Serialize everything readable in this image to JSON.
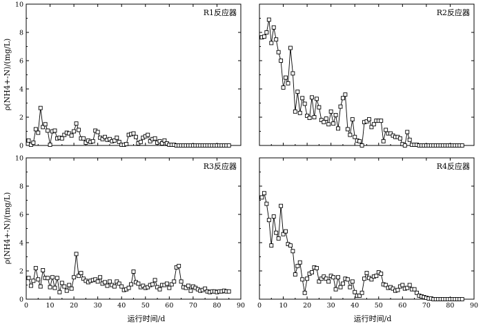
{
  "chart_data": [
    {
      "type": "line",
      "label": "R1反应器",
      "xlim": [
        0,
        90
      ],
      "ylim": [
        0,
        10
      ],
      "x_ticks": [
        0,
        10,
        20,
        30,
        40,
        50,
        60,
        70,
        80,
        90
      ],
      "y_ticks": [
        0,
        2,
        4,
        6,
        8,
        10
      ],
      "x": [
        1,
        2,
        3,
        4,
        5,
        6,
        7,
        8,
        9,
        10,
        11,
        12,
        13,
        14,
        15,
        16,
        17,
        18,
        19,
        20,
        21,
        22,
        23,
        24,
        25,
        26,
        27,
        28,
        29,
        30,
        31,
        32,
        33,
        34,
        35,
        36,
        37,
        38,
        39,
        40,
        41,
        42,
        43,
        44,
        45,
        46,
        47,
        48,
        49,
        50,
        51,
        52,
        53,
        54,
        55,
        56,
        57,
        58,
        59,
        60,
        61,
        62,
        63,
        64,
        65,
        66,
        67,
        68,
        69,
        70,
        71,
        72,
        73,
        74,
        75,
        76,
        77,
        78,
        79,
        80,
        81,
        82,
        83,
        84,
        85
      ],
      "values": [
        0.35,
        0.05,
        0.2,
        1.15,
        0.9,
        2.65,
        1.3,
        1.5,
        1.05,
        0.05,
        1.0,
        1.05,
        0.5,
        0.55,
        0.5,
        0.75,
        0.9,
        0.85,
        0.7,
        1.0,
        1.55,
        1.1,
        0.5,
        0.5,
        0.2,
        0.35,
        0.25,
        0.3,
        1.05,
        0.95,
        0.55,
        0.45,
        0.6,
        0.4,
        0.45,
        0.3,
        0.35,
        0.55,
        0.25,
        0.05,
        0.05,
        0.1,
        0.75,
        0.8,
        0.85,
        0.6,
        0.15,
        0.25,
        0.55,
        0.65,
        0.75,
        0.3,
        0.45,
        0.5,
        0.2,
        0.3,
        0.15,
        0.35,
        0.15,
        0.05,
        0.05,
        0.05,
        0.0,
        0.0,
        0.0,
        0.0,
        0.0,
        0.0,
        0.0,
        0.0,
        0.0,
        0.0,
        0.0,
        0.0,
        0.0,
        0.0,
        0.0,
        0.0,
        0.0,
        0.0,
        0.0,
        0.0,
        0.0,
        0.0,
        0.0
      ]
    },
    {
      "type": "line",
      "label": "R2反应器",
      "xlim": [
        0,
        90
      ],
      "ylim": [
        0,
        10
      ],
      "x_ticks": [
        0,
        10,
        20,
        30,
        40,
        50,
        60,
        70,
        80,
        90
      ],
      "y_ticks": [
        0,
        2,
        4,
        6,
        8,
        10
      ],
      "x": [
        1,
        2,
        3,
        4,
        5,
        6,
        7,
        8,
        9,
        10,
        11,
        12,
        13,
        14,
        15,
        16,
        17,
        18,
        19,
        20,
        21,
        22,
        23,
        24,
        25,
        26,
        27,
        28,
        29,
        30,
        31,
        32,
        33,
        34,
        35,
        36,
        37,
        38,
        39,
        40,
        41,
        42,
        43,
        44,
        45,
        46,
        47,
        48,
        49,
        50,
        51,
        52,
        53,
        54,
        55,
        56,
        57,
        58,
        59,
        60,
        61,
        62,
        63,
        64,
        65,
        66,
        67,
        68,
        69,
        70,
        71,
        72,
        73,
        74,
        75,
        76,
        77,
        78,
        79,
        80,
        81,
        82,
        83,
        84,
        85
      ],
      "values": [
        7.65,
        7.7,
        8.0,
        8.9,
        7.25,
        8.35,
        7.5,
        6.6,
        6.0,
        4.1,
        4.8,
        4.4,
        6.9,
        5.1,
        2.4,
        3.8,
        2.3,
        3.35,
        2.95,
        2.1,
        1.95,
        3.4,
        2.0,
        3.3,
        2.7,
        1.8,
        1.65,
        1.9,
        1.5,
        2.4,
        1.55,
        2.15,
        1.2,
        2.75,
        3.35,
        3.6,
        1.15,
        0.75,
        1.85,
        0.6,
        0.35,
        0.3,
        0.0,
        1.65,
        1.7,
        1.85,
        1.3,
        1.5,
        1.75,
        1.75,
        1.75,
        0.3,
        1.1,
        0.85,
        0.85,
        0.7,
        0.6,
        0.6,
        0.5,
        0.1,
        0.0,
        0.95,
        0.4,
        0.05,
        0.05,
        0.05,
        0.0,
        0.0,
        0.0,
        0.0,
        0.0,
        0.0,
        0.0,
        0.0,
        0.0,
        0.0,
        0.0,
        0.0,
        0.0,
        0.0,
        0.0,
        0.0,
        0.0,
        0.0,
        0.0
      ]
    },
    {
      "type": "line",
      "label": "R3反应器",
      "xlim": [
        0,
        90
      ],
      "ylim": [
        0,
        10
      ],
      "x_ticks": [
        0,
        10,
        20,
        30,
        40,
        50,
        60,
        70,
        80,
        90
      ],
      "y_ticks": [
        0,
        2,
        4,
        6,
        8,
        10
      ],
      "x": [
        1,
        2,
        3,
        4,
        5,
        6,
        7,
        8,
        9,
        10,
        11,
        12,
        13,
        14,
        15,
        16,
        17,
        18,
        19,
        20,
        21,
        22,
        23,
        24,
        25,
        26,
        27,
        28,
        29,
        30,
        31,
        32,
        33,
        34,
        35,
        36,
        37,
        38,
        39,
        40,
        41,
        42,
        43,
        44,
        45,
        46,
        47,
        48,
        49,
        50,
        51,
        52,
        53,
        54,
        55,
        56,
        57,
        58,
        59,
        60,
        61,
        62,
        63,
        64,
        65,
        66,
        67,
        68,
        69,
        70,
        71,
        72,
        73,
        74,
        75,
        76,
        77,
        78,
        79,
        80,
        81,
        82,
        83,
        84,
        85
      ],
      "values": [
        1.5,
        0.95,
        1.3,
        2.2,
        1.4,
        0.9,
        2.05,
        1.5,
        1.5,
        0.85,
        1.55,
        0.8,
        1.5,
        0.5,
        1.15,
        0.9,
        0.6,
        1.0,
        0.75,
        1.55,
        3.2,
        1.65,
        1.85,
        1.45,
        1.3,
        1.2,
        1.3,
        1.35,
        1.4,
        1.25,
        1.55,
        1.1,
        1.2,
        0.95,
        1.25,
        1.0,
        0.9,
        1.25,
        1.1,
        0.9,
        0.65,
        0.7,
        0.8,
        1.05,
        1.95,
        1.2,
        1.1,
        0.85,
        0.95,
        0.8,
        0.85,
        1.0,
        1.05,
        1.35,
        0.85,
        0.7,
        1.0,
        1.0,
        1.1,
        0.8,
        1.05,
        1.25,
        2.25,
        2.35,
        1.25,
        0.85,
        0.8,
        0.95,
        0.6,
        0.9,
        0.8,
        0.7,
        0.6,
        0.65,
        0.75,
        0.55,
        0.5,
        0.55,
        0.55,
        0.5,
        0.55,
        0.55,
        0.6,
        0.55,
        0.55
      ]
    },
    {
      "type": "line",
      "label": "R4反应器",
      "xlim": [
        0,
        90
      ],
      "ylim": [
        0,
        10
      ],
      "x_ticks": [
        0,
        10,
        20,
        30,
        40,
        50,
        60,
        70,
        80,
        90
      ],
      "y_ticks": [
        0,
        2,
        4,
        6,
        8,
        10
      ],
      "x": [
        1,
        2,
        3,
        4,
        5,
        6,
        7,
        8,
        9,
        10,
        11,
        12,
        13,
        14,
        15,
        16,
        17,
        18,
        19,
        20,
        21,
        22,
        23,
        24,
        25,
        26,
        27,
        28,
        29,
        30,
        31,
        32,
        33,
        34,
        35,
        36,
        37,
        38,
        39,
        40,
        41,
        42,
        43,
        44,
        45,
        46,
        47,
        48,
        49,
        50,
        51,
        52,
        53,
        54,
        55,
        56,
        57,
        58,
        59,
        60,
        61,
        62,
        63,
        64,
        65,
        66,
        67,
        68,
        69,
        70,
        71,
        72,
        73,
        74,
        75,
        76,
        77,
        78,
        79,
        80,
        81,
        82,
        83,
        84,
        85
      ],
      "values": [
        7.2,
        7.5,
        6.75,
        5.6,
        3.8,
        5.85,
        4.7,
        4.3,
        6.6,
        4.6,
        4.8,
        3.9,
        3.8,
        3.4,
        1.75,
        2.35,
        2.6,
        1.4,
        0.45,
        1.45,
        1.8,
        1.9,
        2.25,
        2.2,
        1.25,
        1.45,
        1.6,
        1.45,
        1.25,
        1.65,
        1.55,
        0.7,
        1.55,
        0.85,
        1.1,
        1.45,
        1.4,
        0.85,
        1.25,
        0.5,
        0.25,
        0.25,
        0.45,
        1.45,
        1.85,
        1.5,
        1.4,
        1.6,
        1.65,
        1.9,
        1.8,
        1.05,
        1.0,
        0.8,
        0.85,
        0.75,
        0.6,
        0.65,
        0.9,
        1.0,
        0.75,
        0.8,
        1.0,
        0.7,
        0.7,
        0.45,
        0.25,
        0.2,
        0.15,
        0.1,
        0.05,
        0.05,
        0.0,
        0.0,
        0.0,
        0.0,
        0.0,
        0.0,
        0.0,
        0.0,
        0.0,
        0.0,
        0.0,
        0.0,
        0.0
      ]
    }
  ],
  "axes": {
    "ylabel": "ρ(NH4+-N)/(mg/L)",
    "xlabel": "运行时间/d"
  }
}
